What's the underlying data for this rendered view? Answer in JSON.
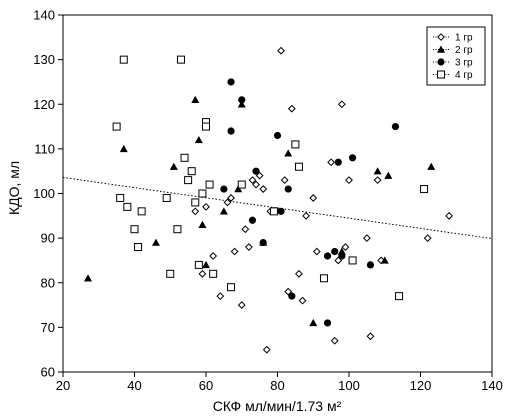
{
  "chart_data": {
    "type": "scatter",
    "xlabel": "СКФ мл/мин/1.73 м²",
    "ylabel": "КДО, мл",
    "xlim": [
      20,
      140
    ],
    "ylim": [
      60,
      140
    ],
    "x_ticks": [
      20,
      40,
      60,
      80,
      100,
      120,
      140
    ],
    "y_ticks": [
      60,
      70,
      80,
      90,
      100,
      110,
      120,
      130,
      140
    ],
    "grid": false,
    "legend_position": "top-right",
    "trend_line": {
      "style": "dotted",
      "points": [
        [
          20,
          103.6
        ],
        [
          140,
          89.9
        ]
      ]
    },
    "series": [
      {
        "name": "1 гр",
        "marker": "diamond-open",
        "points": [
          [
            57,
            96
          ],
          [
            59,
            82
          ],
          [
            60,
            97
          ],
          [
            62,
            86
          ],
          [
            64,
            77
          ],
          [
            66,
            98
          ],
          [
            67,
            99
          ],
          [
            68,
            87
          ],
          [
            70,
            75
          ],
          [
            71,
            92
          ],
          [
            72,
            88
          ],
          [
            73,
            103
          ],
          [
            74,
            102
          ],
          [
            75,
            104
          ],
          [
            76,
            101
          ],
          [
            77,
            65
          ],
          [
            78,
            96
          ],
          [
            81,
            132
          ],
          [
            82,
            103
          ],
          [
            83,
            78
          ],
          [
            84,
            119
          ],
          [
            86,
            82
          ],
          [
            87,
            76
          ],
          [
            88,
            95
          ],
          [
            90,
            99
          ],
          [
            91,
            87
          ],
          [
            95,
            107
          ],
          [
            96,
            67
          ],
          [
            97,
            85
          ],
          [
            98,
            120
          ],
          [
            99,
            88
          ],
          [
            100,
            103
          ],
          [
            105,
            90
          ],
          [
            106,
            68
          ],
          [
            108,
            103
          ],
          [
            109,
            85
          ],
          [
            122,
            90
          ],
          [
            128,
            95
          ]
        ]
      },
      {
        "name": "2 гр",
        "marker": "triangle-filled",
        "points": [
          [
            27,
            81
          ],
          [
            37,
            110
          ],
          [
            46,
            89
          ],
          [
            51,
            106
          ],
          [
            57,
            121
          ],
          [
            58,
            112
          ],
          [
            59,
            93
          ],
          [
            60,
            84
          ],
          [
            65,
            96
          ],
          [
            69,
            101
          ],
          [
            70,
            120
          ],
          [
            76,
            89
          ],
          [
            83,
            109
          ],
          [
            90,
            71
          ],
          [
            98,
            87
          ],
          [
            108,
            105
          ],
          [
            110,
            85
          ],
          [
            111,
            104
          ],
          [
            123,
            106
          ]
        ]
      },
      {
        "name": "3 гр",
        "marker": "circle-filled",
        "points": [
          [
            65,
            101
          ],
          [
            67,
            125
          ],
          [
            67,
            114
          ],
          [
            70,
            121
          ],
          [
            73,
            94
          ],
          [
            74,
            105
          ],
          [
            76,
            89
          ],
          [
            80,
            113
          ],
          [
            81,
            96
          ],
          [
            83,
            101
          ],
          [
            84,
            77
          ],
          [
            94,
            71
          ],
          [
            94,
            86
          ],
          [
            96,
            87
          ],
          [
            97,
            107
          ],
          [
            98,
            86
          ],
          [
            101,
            108
          ],
          [
            106,
            84
          ],
          [
            113,
            115
          ]
        ]
      },
      {
        "name": "4 гр",
        "marker": "square-open",
        "points": [
          [
            35,
            115
          ],
          [
            36,
            99
          ],
          [
            37,
            130
          ],
          [
            38,
            97
          ],
          [
            40,
            92
          ],
          [
            41,
            88
          ],
          [
            42,
            96
          ],
          [
            49,
            99
          ],
          [
            50,
            82
          ],
          [
            52,
            92
          ],
          [
            53,
            130
          ],
          [
            54,
            108
          ],
          [
            55,
            103
          ],
          [
            56,
            105
          ],
          [
            57,
            98
          ],
          [
            58,
            84
          ],
          [
            59,
            100
          ],
          [
            60,
            116
          ],
          [
            60,
            115
          ],
          [
            61,
            102
          ],
          [
            62,
            82
          ],
          [
            67,
            79
          ],
          [
            70,
            102
          ],
          [
            79,
            96
          ],
          [
            85,
            111
          ],
          [
            86,
            106
          ],
          [
            93,
            81
          ],
          [
            101,
            85
          ],
          [
            114,
            77
          ],
          [
            121,
            101
          ]
        ]
      }
    ]
  }
}
